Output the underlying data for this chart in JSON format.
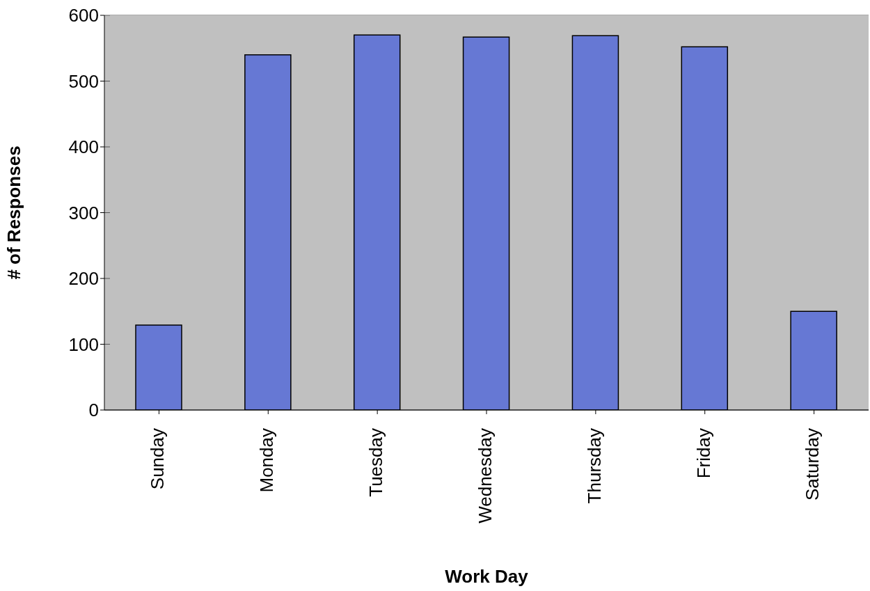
{
  "chart_data": {
    "type": "bar",
    "xlabel": "Work Day",
    "ylabel": "# of Responses",
    "categories": [
      "Sunday",
      "Monday",
      "Tuesday",
      "Wednesday",
      "Thursday",
      "Friday",
      "Saturday"
    ],
    "values": [
      129,
      540,
      570,
      567,
      569,
      552,
      150
    ],
    "color": "#6678d4",
    "ylim": [
      0,
      600
    ],
    "yticks": [
      0,
      100,
      200,
      300,
      400,
      500,
      600
    ],
    "grid": "y",
    "legend": false
  }
}
